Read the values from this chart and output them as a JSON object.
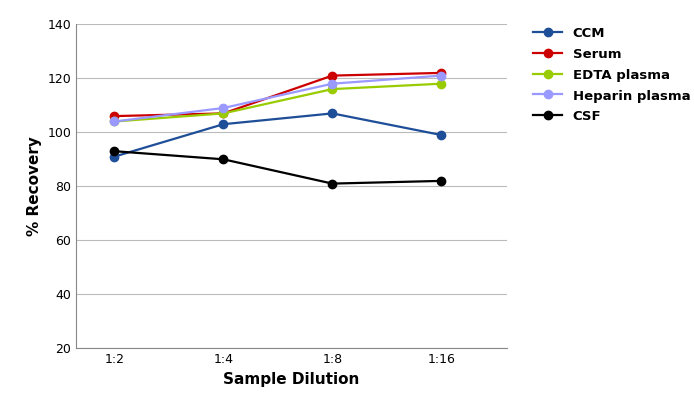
{
  "x_labels": [
    "1:2",
    "1:4",
    "1:8",
    "1:16"
  ],
  "x_values": [
    0,
    1,
    2,
    3
  ],
  "series": [
    {
      "name": "CCM",
      "color": "#1F4E99",
      "values": [
        91,
        103,
        107,
        99
      ]
    },
    {
      "name": "Serum",
      "color": "#CC0000",
      "values": [
        106,
        107,
        121,
        122
      ]
    },
    {
      "name": "EDTA plasma",
      "color": "#99CC00",
      "values": [
        104,
        107,
        116,
        118
      ]
    },
    {
      "name": "Heparin plasma",
      "color": "#9999FF",
      "values": [
        104,
        109,
        118,
        121
      ]
    },
    {
      "name": "CSF",
      "color": "#000000",
      "values": [
        93,
        90,
        81,
        82
      ]
    }
  ],
  "ylabel": "% Recovery",
  "xlabel": "Sample Dilution",
  "ylim": [
    20,
    140
  ],
  "yticks": [
    20,
    40,
    60,
    80,
    100,
    120,
    140
  ],
  "xlim": [
    -0.35,
    3.6
  ],
  "background_color": "#ffffff",
  "grid_color": "#bbbbbb",
  "marker": "o",
  "linewidth": 1.6,
  "markersize": 6,
  "legend_fontsize": 9.5,
  "axis_label_fontsize": 11,
  "tick_fontsize": 9
}
